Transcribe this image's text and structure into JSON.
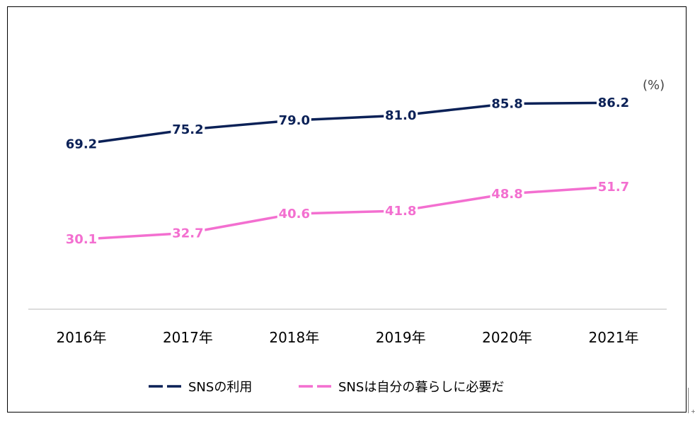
{
  "chart_data": {
    "type": "line",
    "unit_label": "(%)",
    "categories": [
      "2016年",
      "2017年",
      "2018年",
      "2019年",
      "2020年",
      "2021年"
    ],
    "series": [
      {
        "name": "SNSの利用",
        "values": [
          69.2,
          75.2,
          79.0,
          81.0,
          85.8,
          86.2
        ],
        "color": "#0b2157",
        "labels": [
          "69.2",
          "75.2",
          "79.0",
          "81.0",
          "85.8",
          "86.2"
        ]
      },
      {
        "name": "SNSは自分の暮らしに必要だ",
        "values": [
          30.1,
          32.7,
          40.6,
          41.8,
          48.8,
          51.7
        ],
        "color": "#f36fd0",
        "labels": [
          "30.1",
          "32.7",
          "40.6",
          "41.8",
          "48.8",
          "51.7"
        ]
      }
    ],
    "grid": false,
    "legend_position": "bottom"
  }
}
